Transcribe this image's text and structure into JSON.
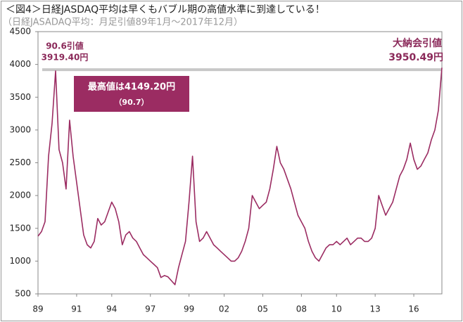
{
  "chart_data": {
    "type": "line",
    "title": "＜図4＞日経JASDAQ平均は早くもバブル期の高値水準に到達している！",
    "subtitle": "（日経JASADAQ平均：月足引値89年1月〜2017年12月）",
    "categories": [
      "89",
      null,
      null,
      null,
      null,
      null,
      null,
      null,
      null,
      null,
      null,
      "91",
      null,
      null,
      null,
      null,
      null,
      null,
      null,
      null,
      null,
      "94",
      null,
      null,
      null,
      null,
      null,
      null,
      null,
      null,
      null,
      null,
      "97",
      null,
      null,
      null,
      null,
      null,
      null,
      null,
      null,
      null,
      null,
      "99",
      null,
      null,
      null,
      null,
      null,
      null,
      null,
      null,
      null,
      "02",
      null,
      null,
      null,
      null,
      null,
      null,
      null,
      null,
      null,
      null,
      "05",
      null,
      null,
      null,
      null,
      null,
      null,
      null,
      null,
      null,
      null,
      "08",
      null,
      null,
      null,
      null,
      null,
      null,
      null,
      null,
      null,
      "10",
      null,
      null,
      null,
      null,
      null,
      null,
      null,
      null,
      null,
      null,
      "13",
      null,
      null,
      null,
      null,
      null,
      null,
      null,
      null,
      null,
      null,
      "16",
      null,
      null,
      null,
      null,
      null,
      null,
      null,
      null
    ],
    "values": [
      1380,
      1450,
      1600,
      2600,
      3100,
      3900,
      2700,
      2500,
      2100,
      3150,
      2600,
      2200,
      1800,
      1400,
      1250,
      1200,
      1300,
      1650,
      1550,
      1600,
      1750,
      1900,
      1800,
      1600,
      1250,
      1400,
      1450,
      1350,
      1300,
      1200,
      1100,
      1050,
      1000,
      950,
      900,
      750,
      780,
      760,
      700,
      640,
      900,
      1100,
      1300,
      1900,
      2600,
      1600,
      1300,
      1350,
      1450,
      1350,
      1250,
      1200,
      1150,
      1100,
      1050,
      1000,
      1000,
      1050,
      1150,
      1300,
      1500,
      2000,
      1900,
      1800,
      1850,
      1900,
      2100,
      2400,
      2750,
      2500,
      2400,
      2250,
      2100,
      1900,
      1700,
      1600,
      1500,
      1300,
      1150,
      1050,
      1000,
      1100,
      1200,
      1250,
      1250,
      1300,
      1250,
      1300,
      1350,
      1250,
      1300,
      1350,
      1350,
      1300,
      1300,
      1350,
      1500,
      2000,
      1850,
      1700,
      1800,
      1900,
      2100,
      2300,
      2400,
      2550,
      2800,
      2550,
      2400,
      2450,
      2550,
      2650,
      2850,
      3000,
      3300,
      3950
    ],
    "color": "#9b2c62",
    "ylim": [
      500,
      4500
    ],
    "yticks": [
      500,
      1000,
      1500,
      2000,
      2500,
      3000,
      3500,
      4000,
      4500
    ],
    "grid": false,
    "reference_line": 3919.4,
    "reference_color": "#c8c8c8",
    "annotations": {
      "left": [
        "90.6引値",
        "3919.40円"
      ],
      "right": [
        "大納会引値",
        "3950.49円"
      ],
      "box": [
        "最高値は4149.20円",
        "（90.7）"
      ]
    },
    "box_color": "#9b2c62"
  }
}
